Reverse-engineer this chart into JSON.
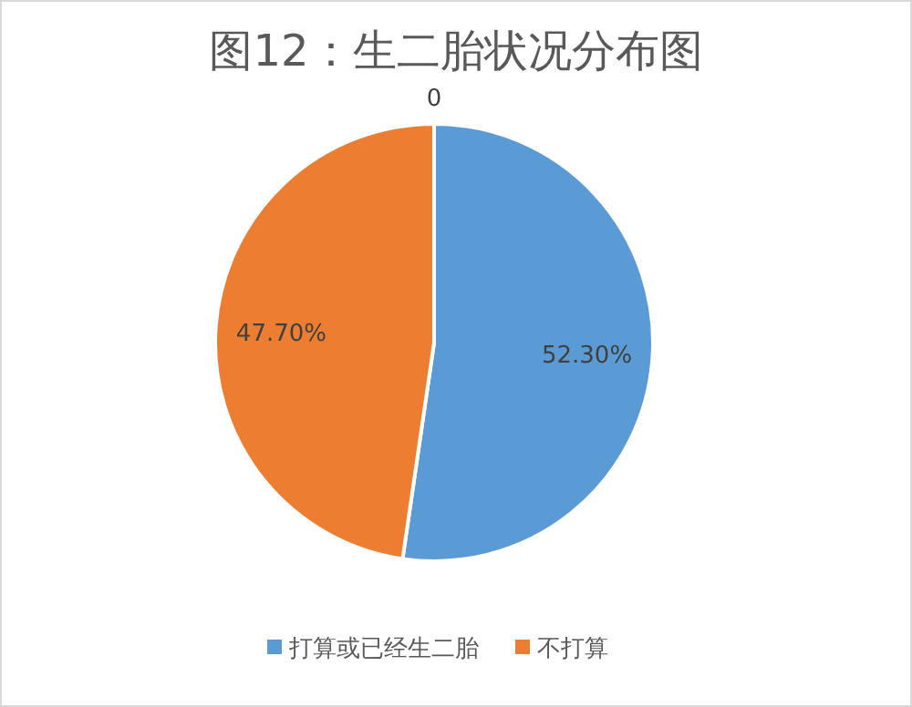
{
  "chart_data": {
    "type": "pie",
    "title": "图12：生二胎状况分布图",
    "categories": [
      "打算或已经生二胎",
      "不打算"
    ],
    "values": [
      52.3,
      47.7
    ],
    "colors": [
      "#5b9bd5",
      "#ed7d31"
    ],
    "value_labels": [
      "52.30%",
      "47.70%"
    ],
    "annotations": [
      "0"
    ],
    "legend": "bottom"
  }
}
